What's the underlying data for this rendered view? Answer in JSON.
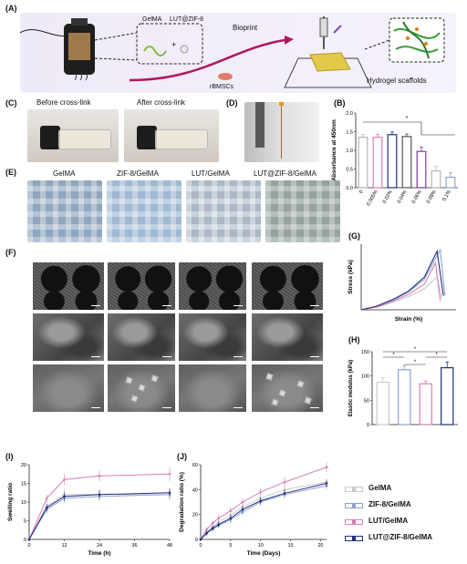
{
  "panels": {
    "A": "(A)",
    "B": "(B)",
    "C": "(C)",
    "D": "(D)",
    "E": "(E)",
    "F": "(F)",
    "G": "(G)",
    "H": "(H)",
    "I": "(I)",
    "J": "(J)"
  },
  "schematic": {
    "gelma": "GelMA",
    "lut": "LUT@ZIF-8",
    "plus": "+",
    "bioprint": "Bioprint",
    "cells": "rBMSCs",
    "result": "Hydrogel scaffolds"
  },
  "panel_c": {
    "before": "Before cross-link",
    "after": "After cross-link"
  },
  "panel_e": {
    "labels": [
      "GelMA",
      "ZIF-8/GelMA",
      "LUT/GelMA",
      "LUT@ZIF-8/GelMA"
    ]
  },
  "legend": {
    "items": [
      {
        "name": "GelMA",
        "color": "#c9c9c9"
      },
      {
        "name": "ZIF-8/GelMA",
        "color": "#8ea3d6"
      },
      {
        "name": "LUT/GelMA",
        "color": "#d97fb4"
      },
      {
        "name": "LUT@ZIF-8/GelMA",
        "color": "#1f2f7a"
      }
    ]
  },
  "chart_data": [
    {
      "panel": "B",
      "type": "bar",
      "ylabel": "Absorbance at 450nm",
      "ylim": [
        0,
        2.0
      ],
      "yticks": [
        "0.0",
        "0.5",
        "1.0",
        "1.5",
        "2.0"
      ],
      "categories": [
        "0",
        "0.005%",
        "0.02%",
        "0.04%",
        "0.06%",
        "0.08%",
        "0.1%"
      ],
      "values": [
        1.35,
        1.35,
        1.42,
        1.37,
        0.97,
        0.45,
        0.28
      ],
      "errors": [
        0.08,
        0.08,
        0.07,
        0.07,
        0.12,
        0.12,
        0.12
      ],
      "colors": [
        "#b5b5b5",
        "#d97fb4",
        "#1f2f7a",
        "#555555",
        "#7a3aa0",
        "#b5b5b5",
        "#8ea3d6"
      ],
      "annotation": "*"
    },
    {
      "panel": "G",
      "type": "line",
      "xlabel": "Strain (%)",
      "ylabel": "Stress (kPa)",
      "series": [
        {
          "name": "GelMA",
          "color": "#c9c9c9",
          "x": [
            0,
            10,
            20,
            30,
            40,
            48,
            51
          ],
          "y": [
            0,
            6,
            16,
            28,
            45,
            70,
            25
          ]
        },
        {
          "name": "ZIF-8/GelMA",
          "color": "#8ea3d6",
          "x": [
            0,
            10,
            20,
            30,
            40,
            50,
            53
          ],
          "y": [
            0,
            7,
            20,
            38,
            65,
            128,
            30
          ]
        },
        {
          "name": "LUT/GelMA",
          "color": "#d97fb4",
          "x": [
            0,
            10,
            20,
            30,
            40,
            47,
            50
          ],
          "y": [
            0,
            6,
            18,
            33,
            55,
            100,
            20
          ]
        },
        {
          "name": "LUT@ZIF-8/GelMA",
          "color": "#1f2f7a",
          "x": [
            0,
            10,
            20,
            30,
            40,
            48,
            52
          ],
          "y": [
            0,
            8,
            22,
            40,
            70,
            125,
            30
          ]
        }
      ]
    },
    {
      "panel": "H",
      "type": "bar",
      "ylabel": "Elastic modulus (kPa)",
      "ylim": [
        0,
        150
      ],
      "yticks": [
        "0",
        "50",
        "100",
        "150"
      ],
      "categories": [
        "GelMA",
        "ZIF-8/GelMA",
        "LUT/GelMA",
        "LUT@ZIF-8/GelMA"
      ],
      "values": [
        87,
        113,
        84,
        117
      ],
      "errors": [
        10,
        8,
        6,
        12
      ],
      "colors": [
        "#c9c9c9",
        "#8ea3d6",
        "#d97fb4",
        "#1f2f7a"
      ],
      "annotation": "*"
    },
    {
      "panel": "I",
      "type": "line",
      "xlabel": "Time (h)",
      "ylabel": "Swelling ratio",
      "xlim": [
        0,
        48
      ],
      "ylim": [
        0,
        20
      ],
      "xticks": [
        "0",
        "12",
        "24",
        "36",
        "48"
      ],
      "yticks": [
        "0",
        "5",
        "10",
        "15",
        "20"
      ],
      "series": [
        {
          "name": "GelMA",
          "color": "#c9c9c9",
          "x": [
            0,
            6,
            12,
            24,
            48
          ],
          "y": [
            0,
            9,
            12,
            12,
            12
          ],
          "err": [
            0,
            1,
            1.5,
            1.5,
            1.5
          ]
        },
        {
          "name": "ZIF-8/GelMA",
          "color": "#8ea3d6",
          "x": [
            0,
            6,
            12,
            24,
            48
          ],
          "y": [
            0,
            8,
            11,
            11.5,
            12
          ],
          "err": [
            0,
            1,
            1.2,
            1.2,
            1.2
          ]
        },
        {
          "name": "LUT/GelMA",
          "color": "#d97fb4",
          "x": [
            0,
            6,
            12,
            24,
            48
          ],
          "y": [
            0,
            11,
            16,
            17,
            17.5
          ],
          "err": [
            0,
            1,
            1.5,
            1.5,
            1.8
          ]
        },
        {
          "name": "LUT@ZIF-8/GelMA",
          "color": "#1f2f7a",
          "x": [
            0,
            6,
            12,
            24,
            48
          ],
          "y": [
            0,
            8.5,
            11.5,
            12,
            12.5
          ],
          "err": [
            0,
            1,
            1.2,
            1.2,
            1.2
          ]
        }
      ]
    },
    {
      "panel": "J",
      "type": "line",
      "xlabel": "Time (Days)",
      "ylabel": "Degradation ratio (%)",
      "xlim": [
        0,
        21
      ],
      "ylim": [
        0,
        60
      ],
      "xticks": [
        "0",
        "5",
        "10",
        "15",
        "20"
      ],
      "yticks": [
        "0",
        "20",
        "40",
        "60"
      ],
      "series": [
        {
          "name": "GelMA",
          "color": "#c9c9c9",
          "x": [
            0,
            1,
            2,
            3,
            5,
            7,
            10,
            14,
            21
          ],
          "y": [
            0,
            6,
            10,
            14,
            19,
            26,
            33,
            40,
            46
          ],
          "err": [
            0,
            2,
            2,
            2,
            3,
            3,
            3,
            3,
            3
          ]
        },
        {
          "name": "ZIF-8/GelMA",
          "color": "#8ea3d6",
          "x": [
            0,
            1,
            2,
            3,
            5,
            7,
            10,
            14,
            21
          ],
          "y": [
            0,
            5,
            8,
            11,
            16,
            22,
            30,
            36,
            43
          ],
          "err": [
            0,
            2,
            2,
            2,
            3,
            3,
            3,
            3,
            3
          ]
        },
        {
          "name": "LUT/GelMA",
          "color": "#d97fb4",
          "x": [
            0,
            1,
            2,
            3,
            5,
            7,
            10,
            14,
            21
          ],
          "y": [
            0,
            8,
            13,
            17,
            23,
            30,
            38,
            46,
            58
          ],
          "err": [
            0,
            2,
            2,
            3,
            3,
            3,
            3,
            4,
            4
          ]
        },
        {
          "name": "LUT@ZIF-8/GelMA",
          "color": "#1f2f7a",
          "x": [
            0,
            1,
            2,
            3,
            5,
            7,
            10,
            14,
            21
          ],
          "y": [
            0,
            5,
            9,
            12,
            17,
            24,
            31,
            37,
            45
          ],
          "err": [
            0,
            2,
            2,
            2,
            3,
            3,
            3,
            3,
            3
          ]
        }
      ]
    }
  ]
}
